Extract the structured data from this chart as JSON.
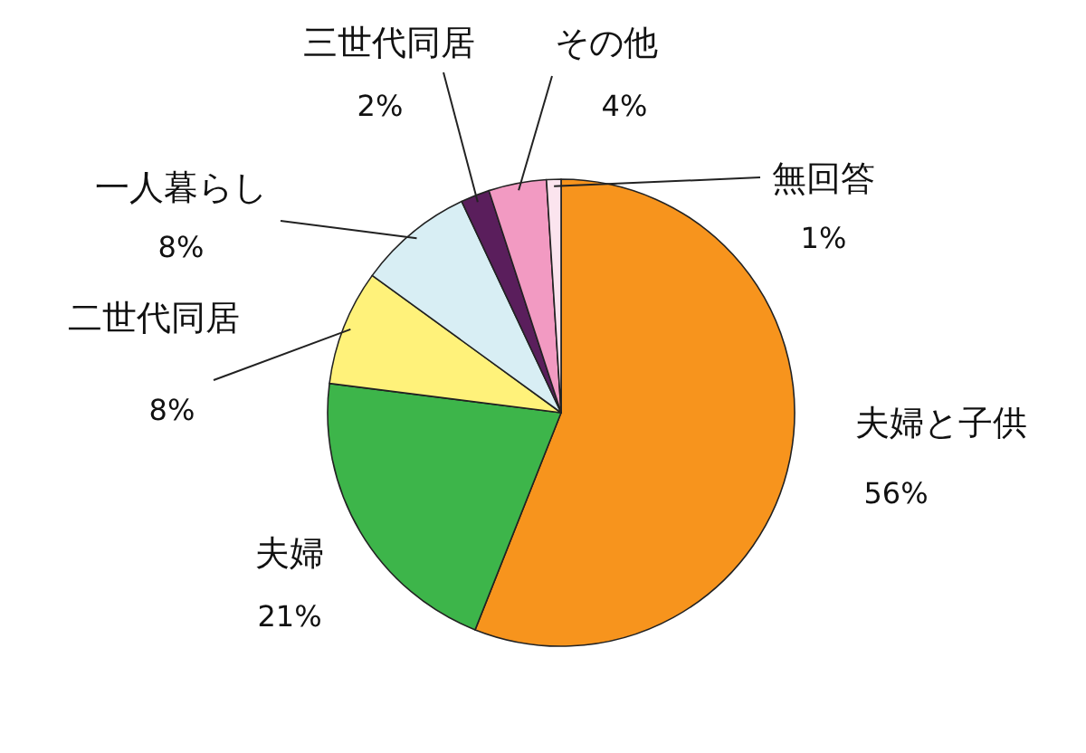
{
  "chart_data": {
    "type": "pie",
    "categories": [
      "夫婦と子供",
      "夫婦",
      "二世代同居",
      "一人暮らし",
      "三世代同居",
      "その他",
      "無回答"
    ],
    "values": [
      56,
      21,
      8,
      8,
      2,
      4,
      1
    ],
    "colors": [
      "#f7941d",
      "#3db54a",
      "#fff27a",
      "#d8eef4",
      "#5a1e5c",
      "#f29ac2",
      "#fbe4ee"
    ],
    "value_labels": [
      "56%",
      "21%",
      "8%",
      "8%",
      "2%",
      "4%",
      "1%"
    ]
  }
}
